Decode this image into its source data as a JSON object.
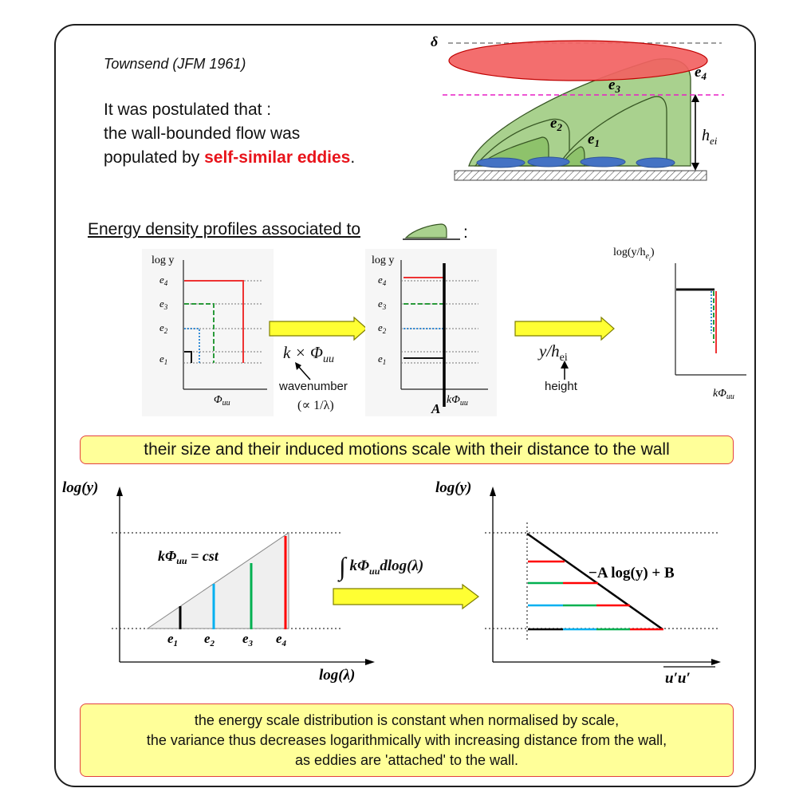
{
  "header": {
    "citation": "Townsend (JFM 1961)",
    "line1": "It was postulated that :",
    "line2": "the wall-bounded flow was",
    "line3_prefix": "populated by ",
    "line3_highlight": "self-similar eddies",
    "line3_suffix": "."
  },
  "eddy_sketch": {
    "delta": "δ",
    "e1": "e",
    "e2": "e",
    "e3": "e",
    "e4": "e",
    "sub1": "1",
    "sub2": "2",
    "sub3": "3",
    "sub4": "4",
    "height_h": "h",
    "height_sub": "ei"
  },
  "energy_section": {
    "title": "Energy density profiles associated to",
    "colon": ":",
    "panel1": {
      "ylabel": "log y",
      "xlabel": "Φ",
      "xsub": "uu",
      "levels": [
        "e",
        "e",
        "e",
        "e"
      ],
      "level_subs": [
        "4",
        "3",
        "2",
        "1"
      ]
    },
    "arrow1": {
      "label_main": "k × Φ",
      "label_sub": "uu",
      "note1": "wavenumber",
      "note2": "(∝ 1/λ)"
    },
    "panel2": {
      "ylabel": "log y",
      "xlabel": "kΦ",
      "xsub": "uu",
      "marker": "A",
      "levels": [
        "e",
        "e",
        "e",
        "e"
      ],
      "level_subs": [
        "4",
        "3",
        "2",
        "1"
      ]
    },
    "arrow2": {
      "label_main": "y/h",
      "label_sub": "ei",
      "note": "height"
    },
    "panel3": {
      "ylabel": "log(y/h",
      "ylabel_sub": "e",
      "ylabel_subsub": "i",
      "ylabel_end": ")",
      "xlabel": "kΦ",
      "xsub": "uu"
    }
  },
  "callout1": "their  size and their induced motions scale with their distance to the wall",
  "bottom_left": {
    "ylabel": "log(y)",
    "xlabel": "log(λ)",
    "formula": "kΦ",
    "formula_sub": "uu",
    "formula_end": " = cst",
    "e_labels": [
      "e",
      "e",
      "e",
      "e"
    ],
    "e_subs": [
      "1",
      "2",
      "3",
      "4"
    ]
  },
  "integral_arrow": {
    "symbol": "∫",
    "expr": "kΦ",
    "expr_sub": "uu",
    "expr_end": "dlog(λ)"
  },
  "bottom_right": {
    "ylabel": "log(y)",
    "xlabel": "u′u′",
    "formula": "−A log(y) + B"
  },
  "callout2": {
    "line1": "the energy scale distribution is constant when normalised by scale,",
    "line2": "the variance thus decreases logarithmically with increasing distance from the wall,",
    "line3": "as eddies are 'attached' to the wall."
  },
  "colors": {
    "eddy_fill": "#a9d18e",
    "eddy_stroke": "#375623",
    "outer_layer": "#f26262",
    "magenta_line": "#e81ec5",
    "blue_blob": "#4472c4",
    "arrow_fill": "#ffff33",
    "e1": "#000000",
    "e2": "#00b0f0",
    "e3": "#00b050",
    "e4": "#ff0000"
  }
}
